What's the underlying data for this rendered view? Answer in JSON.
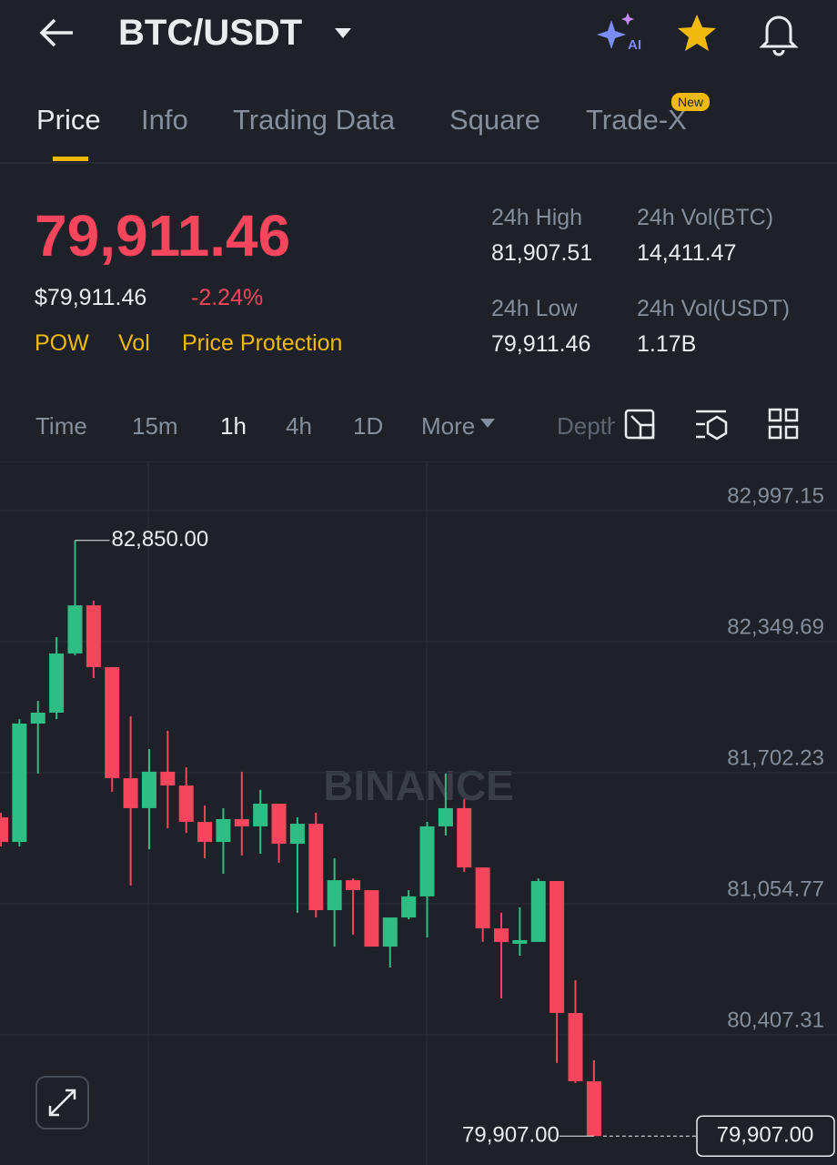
{
  "header": {
    "pair": "BTC/USDT",
    "ai_label": "AI"
  },
  "tabs": {
    "items": [
      "Price",
      "Info",
      "Trading Data",
      "Square",
      "Trade-X"
    ],
    "badge": "New"
  },
  "ticker": {
    "price": "79,911.46",
    "usd_price": "$79,911.46",
    "change": "-2.24%",
    "tags": [
      "POW",
      "Vol",
      "Price Protection"
    ],
    "stats": [
      {
        "label": "24h High",
        "value": "81,907.51"
      },
      {
        "label": "24h Vol(BTC)",
        "value": "14,411.47"
      },
      {
        "label": "24h Low",
        "value": "79,911.46"
      },
      {
        "label": "24h Vol(USDT)",
        "value": "1.17B"
      }
    ]
  },
  "intervals": [
    "Time",
    "15m",
    "1h",
    "4h",
    "1D",
    "More",
    "Depth"
  ],
  "chart_data": {
    "type": "candlestick",
    "watermark": "BINANCE",
    "categories": [
      null,
      null,
      null,
      null,
      null,
      null,
      null,
      null,
      null,
      null,
      null,
      null,
      null,
      null,
      null,
      null,
      null,
      null,
      null,
      null,
      null,
      null,
      null,
      null,
      null,
      null,
      null,
      null,
      null,
      null,
      null,
      null,
      null
    ],
    "open": [
      81482,
      81360,
      81945,
      81999,
      82291,
      82529,
      82224,
      81675,
      81527,
      81707,
      81639,
      81459,
      81360,
      81473,
      81437,
      81549,
      81351,
      81450,
      81023,
      81171,
      81122,
      80843,
      80987,
      81091,
      81437,
      81527,
      81234,
      80933,
      80857,
      80866,
      81167,
      80515,
      80178
    ],
    "high": [
      81504,
      81967,
      82057,
      82372,
      82850,
      82552,
      82224,
      81981,
      81819,
      81909,
      81729,
      81540,
      81527,
      81707,
      81617,
      81549,
      81482,
      81504,
      81279,
      81180,
      81122,
      80987,
      81122,
      81459,
      81698,
      81572,
      81234,
      81010,
      81037,
      81180,
      81167,
      80677,
      80281
    ],
    "low": [
      81338,
      81338,
      81698,
      81967,
      82282,
      82170,
      81608,
      81145,
      81324,
      81428,
      81405,
      81279,
      81203,
      81293,
      81302,
      81257,
      81010,
      80987,
      80843,
      80902,
      80843,
      80740,
      80978,
      80888,
      81392,
      81212,
      80866,
      80587,
      80798,
      80866,
      80268,
      80169,
      79907
    ],
    "close": [
      81360,
      81945,
      81999,
      82291,
      82529,
      82224,
      81675,
      81527,
      81707,
      81639,
      81459,
      81360,
      81473,
      81437,
      81549,
      81351,
      81450,
      81023,
      81171,
      81122,
      80843,
      80987,
      81091,
      81437,
      81527,
      81234,
      80933,
      80866,
      80875,
      81167,
      80515,
      80178,
      79907
    ],
    "up_color": "#2ebd85",
    "down_color": "#f6465d",
    "ylim": [
      79764,
      83240
    ],
    "yticks": [
      {
        "value": 82997.15,
        "label": "82,997.15"
      },
      {
        "value": 82349.69,
        "label": "82,349.69"
      },
      {
        "value": 81702.23,
        "label": "81,702.23"
      },
      {
        "value": 81054.77,
        "label": "81,054.77"
      },
      {
        "value": 80407.31,
        "label": "80,407.31"
      }
    ],
    "grid": true,
    "annotations": [
      {
        "value": 82850,
        "label": "82,850.00"
      },
      {
        "value": 79907,
        "label": "79,907.00"
      }
    ],
    "current_price": {
      "value": 79907,
      "label": "79,907.00"
    }
  }
}
